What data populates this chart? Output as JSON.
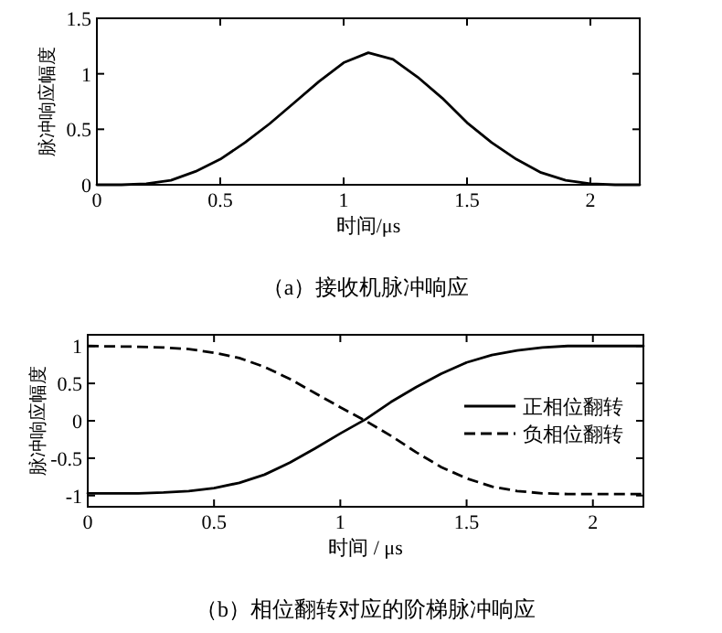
{
  "chart_data": [
    {
      "type": "line",
      "title": "（a）接收机脉冲响应",
      "xlabel": "时间/μs",
      "ylabel": "脉冲响应幅度",
      "xlim": [
        0,
        2.2
      ],
      "xticks": [
        0,
        0.5,
        1,
        1.5,
        2
      ],
      "ylim": [
        0,
        1.5
      ],
      "yticks": [
        0,
        0.5,
        1,
        1.5
      ],
      "series": [
        {
          "color": "#000000",
          "line_style": "solid",
          "x": [
            0,
            0.1,
            0.2,
            0.3,
            0.4,
            0.5,
            0.6,
            0.7,
            0.8,
            0.9,
            1.0,
            1.1,
            1.2,
            1.3,
            1.4,
            1.5,
            1.6,
            1.7,
            1.8,
            1.9,
            2.0,
            2.1,
            2.2
          ],
          "values": [
            0,
            0,
            0.01,
            0.04,
            0.12,
            0.23,
            0.38,
            0.55,
            0.74,
            0.93,
            1.1,
            1.19,
            1.13,
            0.97,
            0.78,
            0.56,
            0.38,
            0.23,
            0.11,
            0.04,
            0.01,
            0,
            0
          ]
        }
      ]
    },
    {
      "type": "line",
      "title": "（b）相位翻转对应的阶梯脉冲响应",
      "xlabel": "时间 / μs",
      "ylabel": "脉冲响应幅度",
      "xlim": [
        0,
        2.2
      ],
      "xticks": [
        0,
        0.5,
        1,
        1.5,
        2
      ],
      "ylim": [
        -1.15,
        1.15
      ],
      "yticks": [
        -1,
        -0.5,
        0,
        0.5,
        1
      ],
      "legend": "right",
      "series": [
        {
          "name": "正相位翻转",
          "color": "#000000",
          "line_style": "solid",
          "x": [
            0,
            0.2,
            0.3,
            0.4,
            0.5,
            0.6,
            0.7,
            0.8,
            0.9,
            1.0,
            1.1,
            1.2,
            1.3,
            1.4,
            1.5,
            1.6,
            1.7,
            1.8,
            1.9,
            2.0,
            2.2
          ],
          "values": [
            -0.97,
            -0.97,
            -0.96,
            -0.94,
            -0.9,
            -0.83,
            -0.72,
            -0.56,
            -0.37,
            -0.17,
            0.02,
            0.25,
            0.45,
            0.63,
            0.78,
            0.88,
            0.94,
            0.98,
            1.0,
            1.0,
            1.0
          ]
        },
        {
          "name": "负相位翻转",
          "color": "#000000",
          "line_style": "dashed",
          "x": [
            0,
            0.2,
            0.3,
            0.4,
            0.5,
            0.6,
            0.7,
            0.8,
            0.9,
            1.0,
            1.1,
            1.2,
            1.3,
            1.4,
            1.5,
            1.6,
            1.7,
            1.8,
            1.9,
            2.0,
            2.2
          ],
          "values": [
            1.0,
            0.99,
            0.98,
            0.96,
            0.91,
            0.84,
            0.72,
            0.56,
            0.37,
            0.18,
            0,
            -0.2,
            -0.42,
            -0.62,
            -0.77,
            -0.88,
            -0.94,
            -0.97,
            -0.98,
            -0.98,
            -0.98
          ]
        }
      ]
    }
  ]
}
